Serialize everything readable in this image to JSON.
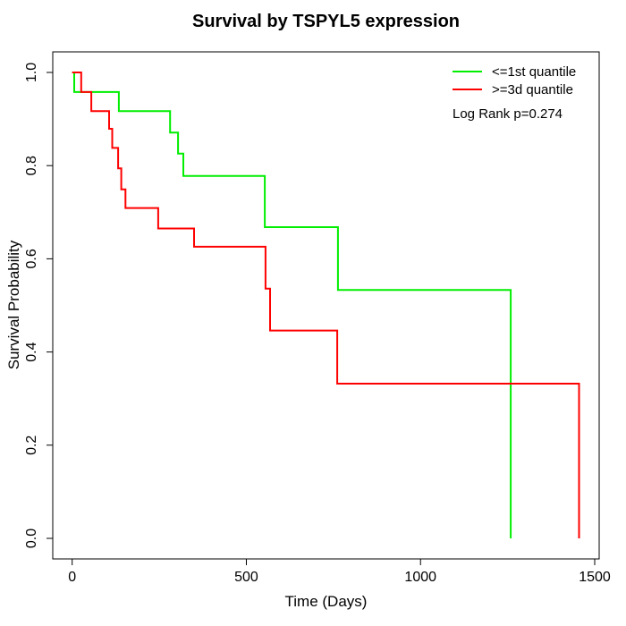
{
  "title": "Survival by TSPYL5 expression",
  "legend": {
    "items": [
      {
        "label": "<=1st quantile",
        "color": "#00ee00"
      },
      {
        "label": ">=3d quantile",
        "color": "#ff0000"
      }
    ],
    "note": "Log Rank p=0.274"
  },
  "chart_data": {
    "type": "line",
    "subtype": "kaplan-meier-step",
    "title": "Survival by TSPYL5 expression",
    "xlabel": "Time (Days)",
    "ylabel": "Survival Probability",
    "xlim": [
      0,
      1500
    ],
    "ylim": [
      0.0,
      1.0
    ],
    "x_ticks": [
      0,
      500,
      1000,
      1500
    ],
    "y_ticks": [
      0.0,
      0.2,
      0.4,
      0.6,
      0.8,
      1.0
    ],
    "grid": false,
    "box": true,
    "legend_position": "top-right",
    "annotation": "Log Rank p=0.274",
    "axis_color": "#000000",
    "series": [
      {
        "name": "<=1st quantile",
        "color": "#00ee00",
        "steps": [
          [
            0,
            1.0
          ],
          [
            6,
            0.958
          ],
          [
            134,
            0.917
          ],
          [
            281,
            0.871
          ],
          [
            304,
            0.826
          ],
          [
            319,
            0.778
          ],
          [
            553,
            0.668
          ],
          [
            763,
            0.533
          ],
          [
            1259,
            0.0
          ]
        ]
      },
      {
        "name": ">=3d quantile",
        "color": "#ff0000",
        "steps": [
          [
            0,
            1.0
          ],
          [
            26,
            0.958
          ],
          [
            55,
            0.917
          ],
          [
            106,
            0.879
          ],
          [
            115,
            0.838
          ],
          [
            132,
            0.794
          ],
          [
            141,
            0.749
          ],
          [
            153,
            0.709
          ],
          [
            247,
            0.665
          ],
          [
            350,
            0.626
          ],
          [
            555,
            0.536
          ],
          [
            568,
            0.446
          ],
          [
            761,
            0.332
          ],
          [
            1455,
            0.0
          ]
        ]
      }
    ]
  }
}
